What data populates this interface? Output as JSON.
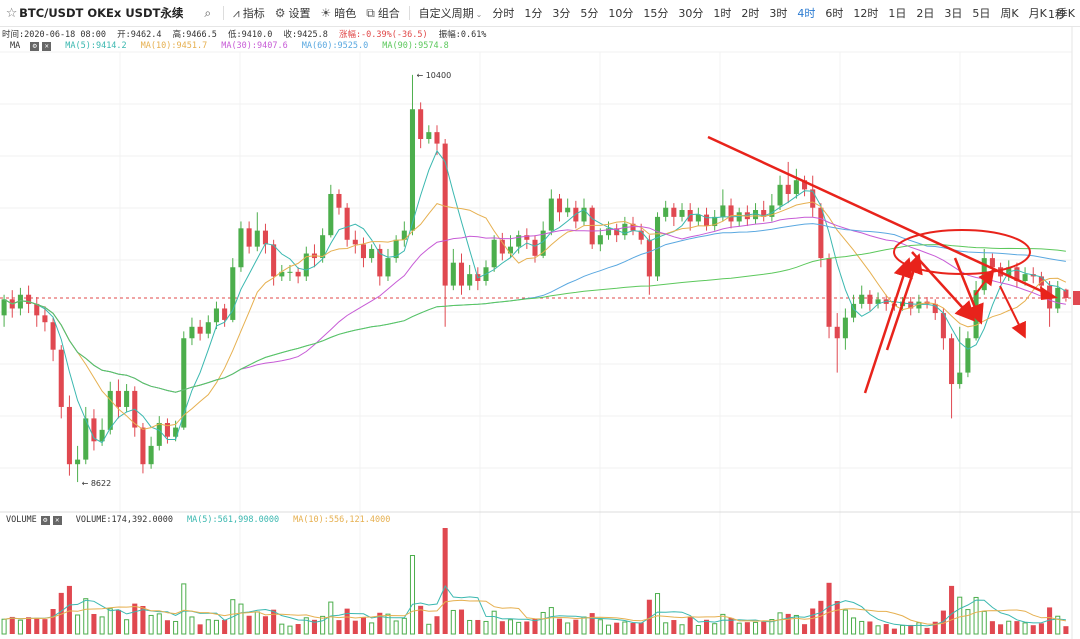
{
  "toolbar": {
    "symbol": "BTC/USDT OKEx USDT永续",
    "indicators_label": "指标",
    "settings_label": "设置",
    "theme_label": "暗色",
    "combo_label": "组合",
    "custom_period_label": "自定义周期",
    "periods": [
      "分时",
      "1分",
      "3分",
      "5分",
      "10分",
      "15分",
      "30分",
      "1时",
      "2时",
      "3时",
      "4时",
      "6时",
      "12时",
      "1日",
      "2日",
      "3日",
      "5日",
      "周K",
      "月K",
      "季K"
    ],
    "active_period": "4时",
    "right_label": "1秒"
  },
  "ohlc_info": {
    "time": "时间:2020-06-18 08:00",
    "open": "开:9462.4",
    "high": "高:9466.5",
    "low": "低:9410.0",
    "close": "收:9425.8",
    "change": "涨幅:-0.39%(-36.5)",
    "amplitude": "振幅:0.61%"
  },
  "ma_legend": {
    "label": "MA",
    "items": [
      {
        "text": "MA(5):9414.2",
        "color": "#3bb8b0"
      },
      {
        "text": "MA(10):9451.7",
        "color": "#e6b050"
      },
      {
        "text": "MA(30):9407.6",
        "color": "#c75cd6"
      },
      {
        "text": "MA(60):9525.0",
        "color": "#5aa8e0"
      },
      {
        "text": "MA(90):9574.8",
        "color": "#5cc85c"
      }
    ]
  },
  "volume_legend": {
    "label": "VOLUME",
    "value": "VOLUME:174,392.0000",
    "items": [
      {
        "text": "MA(5):561,998.0000",
        "color": "#3bb8b0"
      },
      {
        "text": "MA(10):556,121.4000",
        "color": "#e6b050"
      }
    ]
  },
  "chart_data": {
    "type": "candlestick",
    "price_range": [
      8500,
      10500
    ],
    "max_label": "10400",
    "min_label": "8622",
    "max_value": 10400,
    "min_value": 8622,
    "reference_line_value": 9425.8,
    "colors": {
      "up": "#4cae4c",
      "down": "#e04850",
      "annotation": "#e8231b"
    },
    "candles": [
      [
        9350,
        9420,
        9300,
        9440
      ],
      [
        9420,
        9380,
        9340,
        9460
      ],
      [
        9380,
        9440,
        9350,
        9470
      ],
      [
        9440,
        9400,
        9360,
        9480
      ],
      [
        9400,
        9350,
        9300,
        9430
      ],
      [
        9350,
        9320,
        9280,
        9390
      ],
      [
        9320,
        9200,
        9150,
        9340
      ],
      [
        9200,
        8950,
        8900,
        9220
      ],
      [
        8950,
        8700,
        8650,
        9000
      ],
      [
        8700,
        8720,
        8622,
        8780
      ],
      [
        8720,
        8900,
        8700,
        8950
      ],
      [
        8900,
        8800,
        8760,
        8940
      ],
      [
        8800,
        8850,
        8780,
        8900
      ],
      [
        8850,
        9020,
        8830,
        9060
      ],
      [
        9020,
        8950,
        8900,
        9070
      ],
      [
        8950,
        9020,
        8930,
        9050
      ],
      [
        9020,
        8860,
        8820,
        9040
      ],
      [
        8860,
        8700,
        8660,
        8880
      ],
      [
        8700,
        8780,
        8680,
        8820
      ],
      [
        8780,
        8880,
        8760,
        8910
      ],
      [
        8880,
        8820,
        8790,
        8900
      ],
      [
        8820,
        8860,
        8800,
        8890
      ],
      [
        8860,
        9250,
        8850,
        9280
      ],
      [
        9250,
        9300,
        9220,
        9340
      ],
      [
        9300,
        9270,
        9240,
        9330
      ],
      [
        9270,
        9320,
        9250,
        9350
      ],
      [
        9320,
        9380,
        9290,
        9410
      ],
      [
        9380,
        9330,
        9300,
        9400
      ],
      [
        9330,
        9560,
        9320,
        9600
      ],
      [
        9560,
        9730,
        9540,
        9760
      ],
      [
        9730,
        9650,
        9620,
        9760
      ],
      [
        9650,
        9720,
        9630,
        9800
      ],
      [
        9720,
        9660,
        9620,
        9750
      ],
      [
        9660,
        9520,
        9480,
        9680
      ],
      [
        9520,
        9540,
        9500,
        9570
      ],
      [
        9540,
        9540,
        9500,
        9570
      ],
      [
        9540,
        9520,
        9490,
        9560
      ],
      [
        9520,
        9620,
        9500,
        9650
      ],
      [
        9620,
        9600,
        9560,
        9660
      ],
      [
        9600,
        9700,
        9580,
        9730
      ],
      [
        9700,
        9880,
        9690,
        9920
      ],
      [
        9880,
        9820,
        9790,
        9900
      ],
      [
        9820,
        9680,
        9650,
        9840
      ],
      [
        9680,
        9660,
        9620,
        9720
      ],
      [
        9660,
        9600,
        9560,
        9690
      ],
      [
        9600,
        9640,
        9580,
        9660
      ],
      [
        9640,
        9520,
        9480,
        9660
      ],
      [
        9520,
        9600,
        9500,
        9640
      ],
      [
        9600,
        9680,
        9580,
        9700
      ],
      [
        9680,
        9720,
        9650,
        9760
      ],
      [
        9720,
        10250,
        9700,
        10400
      ],
      [
        10250,
        10120,
        10080,
        10280
      ],
      [
        10120,
        10150,
        10100,
        10180
      ],
      [
        10150,
        10100,
        10050,
        10180
      ],
      [
        10100,
        9480,
        9300,
        10120
      ],
      [
        9480,
        9580,
        9460,
        9640
      ],
      [
        9580,
        9480,
        9440,
        9620
      ],
      [
        9480,
        9530,
        9460,
        9570
      ],
      [
        9530,
        9500,
        9460,
        9560
      ],
      [
        9500,
        9560,
        9480,
        9590
      ],
      [
        9560,
        9680,
        9540,
        9700
      ],
      [
        9680,
        9620,
        9590,
        9710
      ],
      [
        9620,
        9650,
        9600,
        9700
      ],
      [
        9650,
        9700,
        9620,
        9720
      ],
      [
        9700,
        9680,
        9640,
        9730
      ],
      [
        9680,
        9610,
        9580,
        9700
      ],
      [
        9610,
        9720,
        9600,
        9760
      ],
      [
        9720,
        9860,
        9700,
        9900
      ],
      [
        9860,
        9800,
        9760,
        9880
      ],
      [
        9800,
        9820,
        9780,
        9860
      ],
      [
        9820,
        9760,
        9730,
        9850
      ],
      [
        9760,
        9820,
        9740,
        9860
      ],
      [
        9820,
        9660,
        9640,
        9830
      ],
      [
        9660,
        9700,
        9630,
        9730
      ],
      [
        9700,
        9730,
        9680,
        9760
      ],
      [
        9730,
        9700,
        9670,
        9750
      ],
      [
        9700,
        9750,
        9680,
        9780
      ],
      [
        9750,
        9720,
        9700,
        9780
      ],
      [
        9720,
        9680,
        9660,
        9750
      ],
      [
        9680,
        9520,
        9440,
        9700
      ],
      [
        9520,
        9780,
        9500,
        9800
      ],
      [
        9780,
        9820,
        9760,
        9850
      ],
      [
        9820,
        9780,
        9740,
        9840
      ],
      [
        9780,
        9810,
        9760,
        9840
      ],
      [
        9810,
        9760,
        9720,
        9840
      ],
      [
        9760,
        9790,
        9740,
        9820
      ],
      [
        9790,
        9740,
        9720,
        9820
      ],
      [
        9740,
        9780,
        9720,
        9810
      ],
      [
        9780,
        9830,
        9760,
        9900
      ],
      [
        9830,
        9760,
        9730,
        9860
      ],
      [
        9760,
        9800,
        9740,
        9820
      ],
      [
        9800,
        9770,
        9740,
        9830
      ],
      [
        9770,
        9810,
        9750,
        9840
      ],
      [
        9810,
        9780,
        9760,
        9850
      ],
      [
        9780,
        9830,
        9760,
        9880
      ],
      [
        9830,
        9920,
        9810,
        9960
      ],
      [
        9920,
        9880,
        9840,
        10020
      ],
      [
        9880,
        9940,
        9860,
        9990
      ],
      [
        9940,
        9900,
        9870,
        9960
      ],
      [
        9900,
        9820,
        9780,
        9960
      ],
      [
        9820,
        9600,
        9560,
        9840
      ],
      [
        9600,
        9300,
        9250,
        9620
      ],
      [
        9300,
        9250,
        9100,
        9360
      ],
      [
        9250,
        9340,
        9200,
        9380
      ],
      [
        9340,
        9400,
        9320,
        9440
      ],
      [
        9400,
        9440,
        9380,
        9480
      ],
      [
        9440,
        9400,
        9370,
        9460
      ],
      [
        9400,
        9420,
        9380,
        9450
      ],
      [
        9420,
        9400,
        9370,
        9440
      ],
      [
        9400,
        9390,
        9370,
        9420
      ],
      [
        9390,
        9410,
        9370,
        9430
      ],
      [
        9410,
        9380,
        9350,
        9430
      ],
      [
        9380,
        9410,
        9360,
        9440
      ],
      [
        9410,
        9400,
        9380,
        9430
      ],
      [
        9400,
        9360,
        9330,
        9420
      ],
      [
        9360,
        9250,
        9200,
        9380
      ],
      [
        9250,
        9050,
        8900,
        9270
      ],
      [
        9050,
        9100,
        9030,
        9300
      ],
      [
        9100,
        9250,
        9080,
        9280
      ],
      [
        9250,
        9460,
        9240,
        9500
      ],
      [
        9460,
        9600,
        9440,
        9640
      ],
      [
        9600,
        9560,
        9530,
        9620
      ],
      [
        9560,
        9520,
        9490,
        9580
      ],
      [
        9520,
        9560,
        9500,
        9590
      ],
      [
        9560,
        9500,
        9470,
        9580
      ],
      [
        9500,
        9530,
        9480,
        9560
      ],
      [
        9530,
        9520,
        9490,
        9560
      ],
      [
        9520,
        9480,
        9460,
        9540
      ],
      [
        9480,
        9380,
        9300,
        9500
      ],
      [
        9380,
        9470,
        9360,
        9500
      ],
      [
        9462.4,
        9425.8,
        9410.0,
        9466.5
      ]
    ],
    "ma_series": [
      {
        "label": "MA(5)",
        "period": 5,
        "color": "#3bb8b0"
      },
      {
        "label": "MA(10)",
        "period": 10,
        "color": "#e6b050"
      },
      {
        "label": "MA(30)",
        "period": 30,
        "color": "#c75cd6"
      },
      {
        "label": "MA(60)",
        "period": 60,
        "color": "#5aa8e0"
      },
      {
        "label": "MA(90)",
        "period": 90,
        "color": "#5cc85c"
      }
    ]
  }
}
